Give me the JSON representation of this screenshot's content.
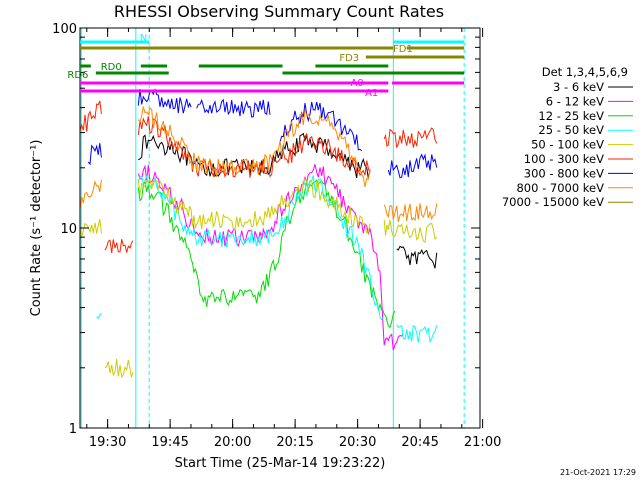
{
  "chart_data": {
    "type": "line",
    "title": "RHESSI Observing Summary Count Rates",
    "xlabel": "Start Time (25-Mar-14 19:23:22)",
    "ylabel": "Count Rate (s⁻¹ detector⁻¹)",
    "yscale": "log",
    "ylim": [
      1,
      100
    ],
    "y_ticks": [
      "1",
      "10",
      "100"
    ],
    "xlim_minutes": [
      0,
      96
    ],
    "x_tick_labels": [
      "19:30",
      "19:45",
      "20:00",
      "20:15",
      "20:30",
      "20:45",
      "21:00"
    ],
    "x_tick_minutes": [
      6.63,
      21.63,
      36.63,
      51.63,
      66.63,
      81.63,
      96.63
    ],
    "legend_title": "Det 1,3,4,5,6,9",
    "legend_position": "right",
    "timestamp": "21-Oct-2021 17:29",
    "series": [
      {
        "name": "3 - 6 keV",
        "color": "#000000",
        "x": [
          0,
          2,
          4,
          5.5,
          6,
          8,
          10,
          12,
          13,
          14,
          16,
          18,
          20,
          22,
          24,
          26,
          27,
          28,
          30,
          32,
          34,
          36,
          38,
          40,
          42,
          44,
          46,
          48,
          50,
          52,
          54,
          56,
          58,
          60,
          62,
          64,
          66,
          68,
          70,
          72,
          73,
          74,
          76,
          78,
          80,
          82,
          84,
          86
        ],
        "y": [
          null,
          null,
          null,
          null,
          null,
          null,
          null,
          null,
          null,
          24,
          27,
          27,
          26,
          26,
          24,
          22,
          20,
          20,
          20,
          20,
          20,
          20,
          20,
          20,
          20,
          20,
          21,
          23,
          25,
          26,
          27,
          27,
          26,
          25,
          23,
          22,
          20,
          20,
          null,
          null,
          null,
          null,
          7.5,
          7.5,
          7,
          7,
          7,
          null
        ]
      },
      {
        "name": "6 - 12 keV",
        "color": "#ff00ff",
        "x": [
          0,
          2,
          4,
          5.5,
          6,
          8,
          10,
          12,
          13,
          14,
          16,
          18,
          20,
          22,
          24,
          26,
          27,
          28,
          30,
          32,
          34,
          36,
          38,
          40,
          42,
          44,
          46,
          48,
          50,
          52,
          54,
          56,
          58,
          60,
          62,
          64,
          66,
          68,
          70,
          72,
          73,
          74,
          76,
          78,
          80,
          82,
          84,
          86
        ],
        "y": [
          null,
          null,
          null,
          null,
          null,
          null,
          null,
          null,
          null,
          17,
          19,
          18,
          16,
          14,
          13,
          11,
          10,
          10,
          9.5,
          9,
          9,
          9,
          9,
          9,
          9,
          9,
          10,
          12,
          14,
          16,
          18,
          19,
          19,
          17,
          15,
          13,
          11,
          10,
          9,
          6,
          2.7,
          2.7,
          2.7,
          null,
          null,
          null,
          null,
          null
        ]
      },
      {
        "name": "12 - 25 keV",
        "color": "#00dd00",
        "x": [
          0,
          2,
          4,
          5.5,
          6,
          8,
          10,
          12,
          13,
          14,
          16,
          18,
          20,
          22,
          24,
          26,
          27,
          28,
          30,
          32,
          34,
          36,
          38,
          40,
          42,
          44,
          46,
          48,
          50,
          52,
          54,
          56,
          58,
          60,
          62,
          64,
          66,
          68,
          70,
          72,
          73,
          74,
          76,
          78,
          80,
          82,
          84,
          86
        ],
        "y": [
          null,
          null,
          null,
          null,
          null,
          null,
          null,
          null,
          null,
          15,
          16,
          15,
          13,
          11,
          9,
          7.5,
          6.5,
          5.5,
          4.5,
          4.5,
          4.5,
          4.5,
          4.5,
          4.5,
          4.5,
          5,
          6,
          8,
          11,
          14,
          16,
          17,
          16,
          14,
          12,
          10,
          8,
          6,
          5,
          4,
          3.5,
          3.5,
          null,
          null,
          null,
          null,
          null,
          null
        ]
      },
      {
        "name": "25 - 50 keV",
        "color": "#00ffff",
        "x": [
          0,
          2,
          4,
          5.5,
          6,
          8,
          10,
          12,
          13,
          14,
          16,
          18,
          20,
          22,
          24,
          26,
          27,
          28,
          30,
          32,
          34,
          36,
          38,
          40,
          42,
          44,
          46,
          48,
          50,
          52,
          54,
          56,
          58,
          60,
          62,
          64,
          66,
          68,
          70,
          72,
          73,
          74,
          76,
          78,
          80,
          82,
          84,
          86
        ],
        "y": [
          null,
          null,
          3.5,
          null,
          null,
          null,
          null,
          null,
          null,
          17,
          18,
          17,
          15,
          13,
          11,
          10,
          9.5,
          9,
          9,
          9,
          9,
          9,
          9,
          9,
          9,
          9,
          9,
          10,
          12,
          14,
          16,
          17,
          16,
          14,
          12,
          10,
          9,
          7,
          5,
          3.5,
          null,
          null,
          3,
          3,
          3,
          3,
          3,
          null
        ]
      },
      {
        "name": "50 - 100 keV",
        "color": "#cccc00",
        "x": [
          0,
          2,
          4,
          5.5,
          6,
          8,
          10,
          12,
          13,
          14,
          16,
          18,
          20,
          22,
          24,
          26,
          27,
          28,
          30,
          32,
          34,
          36,
          38,
          40,
          42,
          44,
          46,
          48,
          50,
          52,
          54,
          56,
          58,
          60,
          62,
          64,
          66,
          68,
          70,
          72,
          73,
          74,
          76,
          78,
          80,
          82,
          84,
          86
        ],
        "y": [
          10,
          10,
          10,
          null,
          2,
          2,
          2,
          2,
          null,
          16,
          17,
          16,
          15,
          14,
          13,
          12,
          11,
          11,
          11,
          11,
          11,
          11,
          11,
          11,
          11,
          11,
          12,
          13,
          14,
          15,
          16,
          16,
          15,
          14,
          13,
          12,
          11,
          10,
          null,
          null,
          10,
          10,
          9.5,
          9.5,
          9.5,
          9.5,
          9.5,
          null
        ]
      },
      {
        "name": "100 - 300 keV",
        "color": "#ff2200",
        "x": [
          0,
          2,
          4,
          5.5,
          6,
          8,
          10,
          12,
          13,
          14,
          16,
          18,
          20,
          22,
          24,
          26,
          27,
          28,
          30,
          32,
          34,
          36,
          38,
          40,
          42,
          44,
          46,
          48,
          50,
          52,
          54,
          56,
          58,
          60,
          62,
          64,
          66,
          68,
          70,
          72,
          73,
          74,
          76,
          78,
          80,
          82,
          84,
          86
        ],
        "y": [
          32,
          34,
          40,
          null,
          8,
          8,
          8,
          8,
          null,
          32,
          34,
          32,
          30,
          26,
          24,
          22,
          20,
          20,
          20,
          20,
          20,
          20,
          20,
          20,
          20,
          20,
          20,
          21,
          23,
          25,
          27,
          28,
          27,
          25,
          23,
          22,
          21,
          20,
          null,
          null,
          28,
          28,
          28,
          28,
          28,
          28,
          29,
          null
        ]
      },
      {
        "name": "300 - 800 keV",
        "color": "#0000ff",
        "x": [
          0,
          2,
          4,
          5.5,
          6,
          8,
          10,
          12,
          13,
          14,
          16,
          18,
          20,
          22,
          24,
          26,
          27,
          28,
          30,
          32,
          34,
          36,
          38,
          40,
          42,
          44,
          46,
          48,
          50,
          52,
          54,
          56,
          58,
          60,
          62,
          64,
          66,
          68,
          70,
          72,
          73,
          74,
          76,
          78,
          80,
          82,
          84,
          86
        ],
        "y": [
          null,
          23,
          24,
          null,
          null,
          null,
          null,
          null,
          null,
          45,
          45,
          45,
          44,
          43,
          42,
          41,
          null,
          40,
          40,
          40,
          40,
          40,
          40,
          40,
          40,
          40,
          null,
          30,
          33,
          36,
          38,
          39,
          38,
          36,
          33,
          30,
          27,
          null,
          null,
          null,
          null,
          20,
          20,
          20,
          20,
          21,
          21,
          null
        ]
      },
      {
        "name": "800 - 7000 keV",
        "color": "#ff8800",
        "x": [
          0,
          2,
          4,
          5.5,
          6,
          8,
          10,
          12,
          13,
          14,
          16,
          18,
          20,
          22,
          24,
          26,
          27,
          28,
          30,
          32,
          34,
          36,
          38,
          40,
          42,
          44,
          46,
          48,
          50,
          52,
          54,
          56,
          58,
          60,
          62,
          64,
          66,
          68,
          70,
          72,
          73,
          74,
          76,
          78,
          80,
          82,
          84,
          86
        ],
        "y": [
          14,
          15,
          16,
          null,
          null,
          null,
          null,
          null,
          null,
          36,
          37,
          35,
          33,
          30,
          27,
          24,
          22,
          21,
          20,
          20,
          20,
          20,
          20,
          20,
          20,
          21,
          22,
          25,
          29,
          33,
          36,
          37,
          36,
          33,
          29,
          25,
          21,
          18,
          null,
          null,
          12,
          12,
          12,
          12,
          12,
          12,
          12,
          null
        ]
      },
      {
        "name": "7000 - 15000 keV",
        "color": "#888800",
        "x": [],
        "y": []
      }
    ],
    "status_bars": [
      {
        "label": "N",
        "color": "#00ffff",
        "segments": [
          [
            0,
            16.6
          ],
          [
            75.2,
            92.2
          ]
        ]
      },
      {
        "label": "FD1",
        "color": "#888800",
        "segments": [
          [
            0,
            75.2
          ],
          [
            78.4,
            92.2
          ]
        ]
      },
      {
        "label": "FD3",
        "color": "#888800",
        "segments": [
          [
            68.6,
            92.2
          ]
        ]
      },
      {
        "label": "RD0",
        "color": "#008800",
        "segments": [
          [
            0,
            2.6
          ],
          [
            14.6,
            20.9
          ],
          [
            28.5,
            48.6
          ],
          [
            56.5,
            74
          ]
        ]
      },
      {
        "label": "RD6",
        "color": "#008800",
        "segments": [
          [
            3.8,
            21.3
          ],
          [
            48.6,
            74
          ],
          [
            73.5,
            92.2
          ]
        ]
      },
      {
        "label": "A0",
        "color": "#ff00ff",
        "segments": [
          [
            0,
            74
          ],
          [
            74.9,
            92.2
          ]
        ]
      },
      {
        "label": "A1",
        "color": "#ff00ff",
        "segments": [
          [
            0,
            74
          ]
        ]
      }
    ]
  }
}
